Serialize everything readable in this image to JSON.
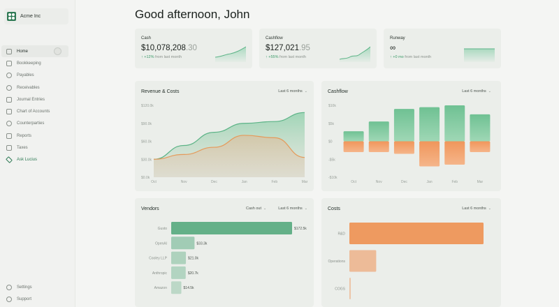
{
  "org": {
    "name": "Acme Inc"
  },
  "nav": {
    "items": [
      {
        "label": "Home",
        "icon": "home-icon"
      },
      {
        "label": "Bookkeeping",
        "icon": "book-icon"
      },
      {
        "label": "Payables",
        "icon": "payables-icon"
      },
      {
        "label": "Receivables",
        "icon": "receivables-icon"
      },
      {
        "label": "Journal Entries",
        "icon": "list-icon"
      },
      {
        "label": "Chart of Accounts",
        "icon": "accounts-icon"
      },
      {
        "label": "Counterparties",
        "icon": "users-icon"
      },
      {
        "label": "Reports",
        "icon": "reports-icon"
      },
      {
        "label": "Taxes",
        "icon": "taxes-icon"
      },
      {
        "label": "Ask Lucius",
        "icon": "sparkle-icon"
      }
    ],
    "bottom": [
      {
        "label": "Settings",
        "icon": "gear-icon"
      },
      {
        "label": "Support",
        "icon": "help-icon"
      }
    ]
  },
  "greeting": "Good afternoon, John",
  "stats": {
    "cash": {
      "label": "Cash",
      "value_main": "$10,078,208",
      "value_dim": ".30",
      "change": "+12%",
      "change_suffix": "from last month"
    },
    "cashflow": {
      "label": "Cashflow",
      "value_main": "$127,021",
      "value_dim": ".95",
      "change": "+55%",
      "change_suffix": "from last month"
    },
    "runway": {
      "label": "Runway",
      "value_main": "∞",
      "value_dim": "",
      "change": "+0 mo",
      "change_suffix": "from last month"
    }
  },
  "panels": {
    "revenue": {
      "title": "Revenue & Costs",
      "period": "Last 6 months"
    },
    "cashflow": {
      "title": "Cashflow",
      "period": "Last 6 months"
    },
    "vendors": {
      "title": "Vendors",
      "filter": "Cash out",
      "period": "Last 6 months"
    },
    "costs": {
      "title": "Costs",
      "period": "Last 6 months"
    }
  },
  "colors": {
    "green": "#6fbf94",
    "orange": "#ee9a60",
    "accent": "#2f7a55"
  },
  "chart_data": [
    {
      "type": "area",
      "title": "Revenue & Costs",
      "categories": [
        "Oct",
        "Nov",
        "Dec",
        "Jan",
        "Feb",
        "Mar"
      ],
      "y_ticks": [
        "$0.0k",
        "$30.0k",
        "$60.0k",
        "$90.0k",
        "$120.0k"
      ],
      "ylim": [
        0,
        120
      ],
      "series": [
        {
          "values": [
            30,
            53,
            75,
            90,
            93,
            108
          ]
        },
        {
          "values": [
            30,
            38,
            50,
            70,
            66,
            33
          ]
        }
      ]
    },
    {
      "type": "bar",
      "title": "Cashflow",
      "categories": [
        "Oct",
        "Nov",
        "Dec",
        "Jan",
        "Feb",
        "Mar"
      ],
      "y_ticks": [
        "$10k",
        "$5k",
        "$0",
        "-$5k",
        "-$10k"
      ],
      "ylim": [
        -10,
        10
      ],
      "series": [
        {
          "values": [
            2.8,
            5.5,
            9,
            9.5,
            10,
            7.5
          ]
        },
        {
          "values": [
            -3,
            -3,
            -3.5,
            -7,
            -6.5,
            -3
          ]
        }
      ]
    },
    {
      "type": "bar",
      "title": "Vendors",
      "categories": [
        "Gusto",
        "OpenAI",
        "Cooley LLP",
        "Anthropic",
        "Amazon"
      ],
      "values": [
        172.5,
        33.3,
        21.0,
        20.7,
        14.5
      ],
      "value_labels": [
        "$172.5k",
        "$33.3k",
        "$21.0k",
        "$20.7k",
        "$14.5k"
      ]
    },
    {
      "type": "bar",
      "title": "Costs",
      "categories": [
        "R&D",
        "Operations",
        "COGS"
      ],
      "values": [
        100,
        20,
        1
      ]
    }
  ]
}
